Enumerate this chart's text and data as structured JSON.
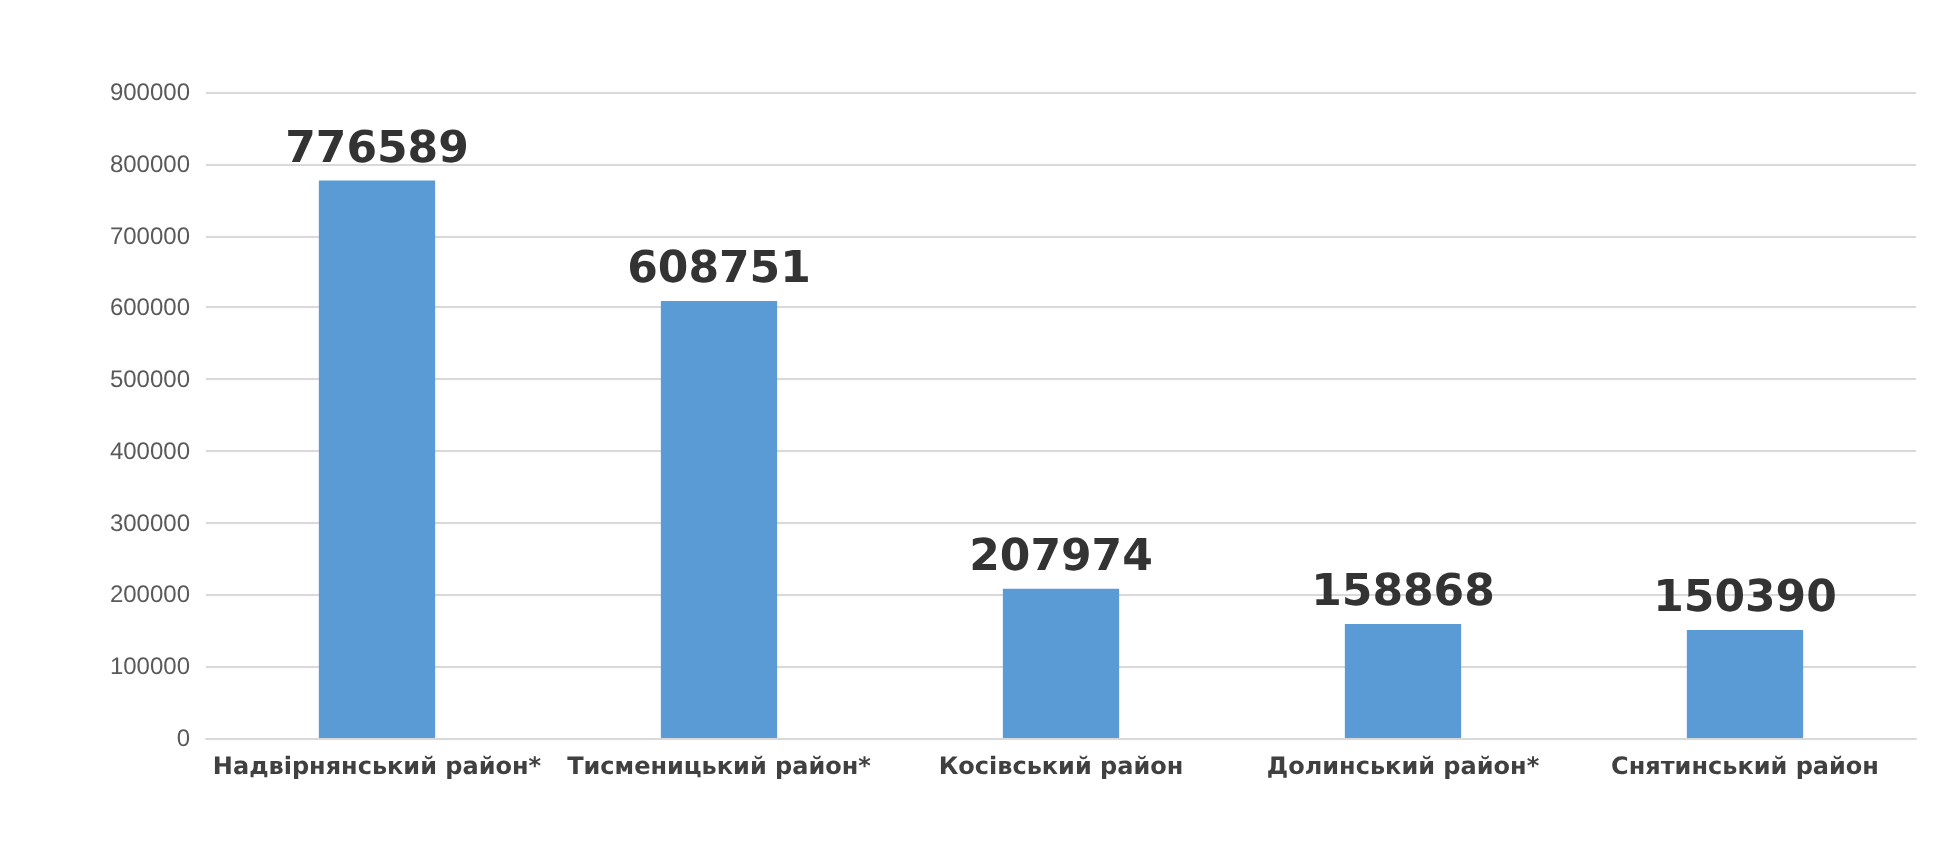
{
  "chart_data": {
    "type": "bar",
    "categories": [
      "Надвірнянський район*",
      "Тисменицький район*",
      "Косівський район",
      "Долинський район*",
      "Снятинський район"
    ],
    "values": [
      776589,
      608751,
      207974,
      158868,
      150390
    ],
    "color": "#5b9bd5",
    "ylim": [
      0,
      900000
    ],
    "yticks": [
      0,
      100000,
      200000,
      300000,
      400000,
      500000,
      600000,
      700000,
      800000,
      900000
    ],
    "grid": "y",
    "data_labels": true
  }
}
